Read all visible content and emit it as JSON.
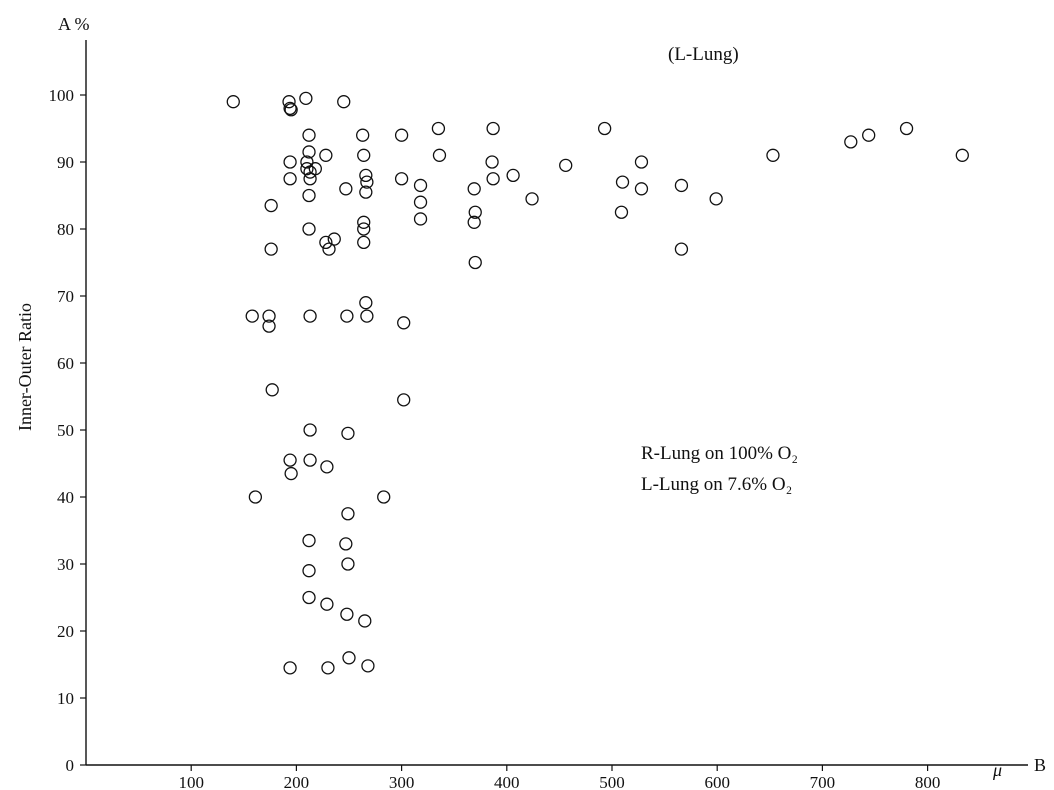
{
  "chart_data": {
    "type": "scatter",
    "title": "(L-Lung)",
    "ylabel": "Inner-Outer Ratio",
    "y_axis_letter": "A %",
    "x_axis_letter": "B",
    "x_unit": "μ",
    "xlim": [
      0,
      850
    ],
    "ylim": [
      0,
      100
    ],
    "x_ticks": [
      100,
      200,
      300,
      400,
      500,
      600,
      700,
      800
    ],
    "y_ticks": [
      0,
      10,
      20,
      30,
      40,
      50,
      60,
      70,
      80,
      90,
      100
    ],
    "grid": false,
    "annotations": [
      "R-Lung on 100% O₂",
      "L-Lung on 7.6% O₂"
    ],
    "marker": "open-circle",
    "points": [
      [
        140,
        99
      ],
      [
        193,
        99
      ],
      [
        209,
        99.5
      ],
      [
        245,
        99
      ],
      [
        194,
        98
      ],
      [
        195,
        97.8
      ],
      [
        212,
        94
      ],
      [
        263,
        94
      ],
      [
        300,
        94
      ],
      [
        335,
        95
      ],
      [
        387,
        95
      ],
      [
        493,
        95
      ],
      [
        780,
        95
      ],
      [
        744,
        94
      ],
      [
        727,
        93
      ],
      [
        212,
        91.5
      ],
      [
        228,
        91
      ],
      [
        264,
        91
      ],
      [
        210,
        90
      ],
      [
        194,
        90
      ],
      [
        210,
        89
      ],
      [
        218,
        89
      ],
      [
        213,
        88.5
      ],
      [
        266,
        88
      ],
      [
        300,
        87.5
      ],
      [
        387,
        87.5
      ],
      [
        406,
        88
      ],
      [
        456,
        89.5
      ],
      [
        528,
        90
      ],
      [
        386,
        90
      ],
      [
        336,
        91
      ],
      [
        653,
        91
      ],
      [
        833,
        91
      ],
      [
        194,
        87.5
      ],
      [
        213,
        87.5
      ],
      [
        267,
        87
      ],
      [
        318,
        86.5
      ],
      [
        247,
        86
      ],
      [
        266,
        85.5
      ],
      [
        369,
        86
      ],
      [
        510,
        87
      ],
      [
        528,
        86
      ],
      [
        566,
        86.5
      ],
      [
        212,
        85
      ],
      [
        318,
        84
      ],
      [
        424,
        84.5
      ],
      [
        599,
        84.5
      ],
      [
        176,
        83.5
      ],
      [
        370,
        82.5
      ],
      [
        509,
        82.5
      ],
      [
        264,
        81
      ],
      [
        318,
        81.5
      ],
      [
        369,
        81
      ],
      [
        212,
        80
      ],
      [
        264,
        80
      ],
      [
        236,
        78.5
      ],
      [
        228,
        78
      ],
      [
        264,
        78
      ],
      [
        231,
        77
      ],
      [
        176,
        77
      ],
      [
        566,
        77
      ],
      [
        370,
        75
      ],
      [
        266,
        69
      ],
      [
        158,
        67
      ],
      [
        174,
        67
      ],
      [
        213,
        67
      ],
      [
        248,
        67
      ],
      [
        267,
        67
      ],
      [
        174,
        65.5
      ],
      [
        302,
        66
      ],
      [
        177,
        56
      ],
      [
        302,
        54.5
      ],
      [
        213,
        50
      ],
      [
        249,
        49.5
      ],
      [
        194,
        45.5
      ],
      [
        213,
        45.5
      ],
      [
        229,
        44.5
      ],
      [
        195,
        43.5
      ],
      [
        161,
        40
      ],
      [
        283,
        40
      ],
      [
        249,
        37.5
      ],
      [
        212,
        33.5
      ],
      [
        247,
        33
      ],
      [
        249,
        30
      ],
      [
        212,
        29
      ],
      [
        212,
        25
      ],
      [
        229,
        24
      ],
      [
        248,
        22.5
      ],
      [
        265,
        21.5
      ],
      [
        194,
        14.5
      ],
      [
        230,
        14.5
      ],
      [
        268,
        14.8
      ],
      [
        250,
        16
      ]
    ]
  }
}
